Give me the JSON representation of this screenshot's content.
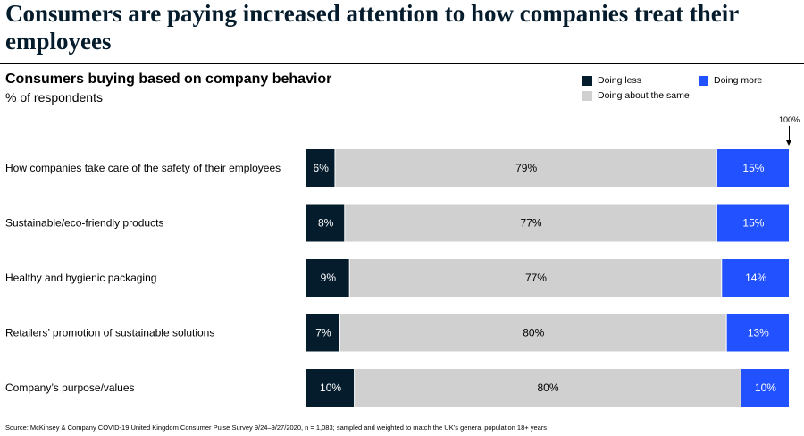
{
  "headline": "Consumers are paying increased attention to how companies treat their employees",
  "chart_data": {
    "type": "bar",
    "orientation": "horizontal-stacked",
    "title": "Consumers buying based on company behavior",
    "subtitle": "% of respondents",
    "total_label": "100%",
    "categories": [
      "How companies take care of the safety of their employees",
      "Sustainable/eco-friendly products",
      "Healthy and hygienic packaging",
      "Retailers’ promotion of sustainable solutions",
      "Company’s purpose/values"
    ],
    "series": [
      {
        "name": "Doing less",
        "color": "#051c2c",
        "text_color": "#ffffff",
        "values": [
          6,
          8,
          9,
          7,
          10
        ]
      },
      {
        "name": "Doing about the same",
        "color": "#d0d0d0",
        "text_color": "#000000",
        "values": [
          79,
          77,
          77,
          80,
          80
        ]
      },
      {
        "name": "Doing more",
        "color": "#2251ff",
        "text_color": "#ffffff",
        "values": [
          15,
          15,
          14,
          13,
          10
        ]
      }
    ],
    "value_suffix": "%",
    "xlim": [
      0,
      100
    ],
    "legend_position": "top-right",
    "grid": false
  },
  "source": "Source: McKinsey & Company COVID-19 United Kingdom Consumer Pulse Survey 9/24–9/27/2020, n = 1,083; sampled and weighted to match the UK’s general population 18+ years"
}
